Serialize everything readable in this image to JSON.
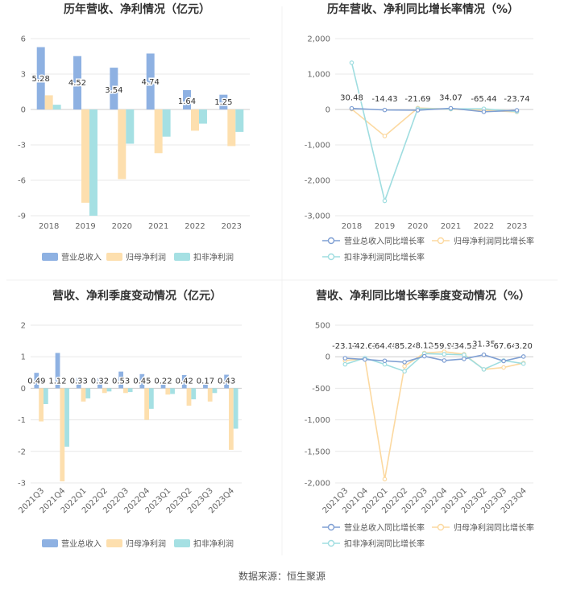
{
  "source_text": "数据来源：恒生聚源",
  "colors": {
    "revenue": "#8eb1e2",
    "net": "#fddfae",
    "deducted": "#a5e0e3",
    "line_revenue": "#7f9fd3",
    "line_net": "#fcd9a0",
    "line_deducted": "#9fdde0",
    "grid": "#e8e8e8",
    "axis": "#cccccc"
  },
  "chart_data": [
    {
      "id": "annual-amount",
      "type": "bar",
      "title": "历年营收、净利情况（亿元）",
      "categories": [
        "2018",
        "2019",
        "2020",
        "2021",
        "2022",
        "2023"
      ],
      "yticks": [
        6,
        3,
        0,
        -3,
        -6,
        -9
      ],
      "ylim": [
        -9,
        6
      ],
      "series": [
        {
          "name": "营业总收入",
          "color_key": "revenue",
          "values": [
            5.28,
            4.52,
            3.54,
            4.74,
            1.64,
            1.25
          ],
          "labels": [
            "5.28",
            "4.52",
            "3.54",
            "4.74",
            "1.64",
            "1.25"
          ]
        },
        {
          "name": "归母净利润",
          "color_key": "net",
          "values": [
            1.2,
            -7.9,
            -5.9,
            -3.7,
            -1.8,
            -3.1
          ]
        },
        {
          "name": "扣非净利润",
          "color_key": "deducted",
          "values": [
            0.4,
            -9.0,
            -2.9,
            -2.3,
            -1.2,
            -1.9
          ]
        }
      ],
      "legend": "bottom"
    },
    {
      "id": "annual-growth",
      "type": "line",
      "title": "历年营收、净利同比增长率情况（%）",
      "categories": [
        "2018",
        "2019",
        "2020",
        "2021",
        "2022",
        "2023"
      ],
      "yticks": [
        2000,
        1000,
        0,
        -1000,
        -2000,
        -3000
      ],
      "yticklabels": [
        "2,000",
        "1,000",
        "0",
        "-1,000",
        "-2,000",
        "-3,000"
      ],
      "ylim": [
        -3000,
        2000
      ],
      "series": [
        {
          "name": "营业总收入同比增长率",
          "color_key": "line_revenue",
          "values": [
            30.48,
            -14.43,
            -21.69,
            34.07,
            -65.44,
            -23.74
          ],
          "labels": [
            "30.48",
            "-14.43",
            "-21.69",
            "34.07",
            "-65.44",
            "-23.74"
          ]
        },
        {
          "name": "归母净利润同比增长率",
          "color_key": "line_net",
          "values": [
            10,
            -750,
            40,
            10,
            -20,
            -70
          ]
        },
        {
          "name": "扣非净利润同比增长率",
          "color_key": "line_deducted",
          "values": [
            1320,
            -2580,
            20,
            15,
            20,
            -60
          ]
        }
      ],
      "legend": "bottom"
    },
    {
      "id": "quarterly-amount",
      "type": "bar",
      "title": "营收、净利季度变动情况（亿元）",
      "categories": [
        "2021Q3",
        "2021Q4",
        "2022Q1",
        "2022Q2",
        "2022Q3",
        "2022Q4",
        "2023Q1",
        "2023Q2",
        "2023Q3",
        "2023Q4"
      ],
      "yticks": [
        2,
        1,
        0,
        -1,
        -2,
        -3
      ],
      "ylim": [
        -3,
        2
      ],
      "series": [
        {
          "name": "营业总收入",
          "color_key": "revenue",
          "values": [
            0.49,
            1.12,
            0.33,
            0.32,
            0.53,
            0.45,
            0.22,
            0.42,
            0.17,
            0.43
          ],
          "labels": [
            "0.49",
            "1.12",
            "0.33",
            "0.32",
            "0.53",
            "0.45",
            "0.22",
            "0.42",
            "0.17",
            "0.43"
          ]
        },
        {
          "name": "归母净利润",
          "color_key": "net",
          "values": [
            -1.05,
            -2.95,
            -0.42,
            -0.15,
            -0.15,
            -1.0,
            -0.2,
            -0.55,
            -0.42,
            -1.95
          ]
        },
        {
          "name": "扣非净利润",
          "color_key": "deducted",
          "values": [
            -0.5,
            -1.85,
            -0.32,
            -0.1,
            -0.12,
            -0.65,
            -0.18,
            -0.35,
            -0.15,
            -1.28
          ]
        }
      ],
      "legend": "bottom"
    },
    {
      "id": "quarterly-growth",
      "type": "line",
      "title": "营收、净利同比增长率季度变动情况（%）",
      "categories": [
        "2021Q3",
        "2021Q4",
        "2022Q1",
        "2022Q2",
        "2022Q3",
        "2022Q4",
        "2023Q1",
        "2023Q2",
        "2023Q3",
        "2023Q4"
      ],
      "yticks": [
        500,
        0,
        -500,
        -1000,
        -1500,
        -2000
      ],
      "yticklabels": [
        "500",
        "0",
        "-500",
        "-1,000",
        "-1,500",
        "-2,000"
      ],
      "ylim": [
        -2000,
        500
      ],
      "series": [
        {
          "name": "营业总收入同比增长率",
          "color_key": "line_revenue",
          "values": [
            -23.11,
            -42.63,
            -64.48,
            -85.24,
            8.12,
            -59.95,
            -34.52,
            31.35,
            -67.64,
            3.2
          ],
          "labels": [
            "-23.11",
            "-42.63",
            "-64.48",
            "-85.24",
            "8.12",
            "-59.95",
            "-34.52",
            "31.35",
            "-67.64",
            "3.20"
          ]
        },
        {
          "name": "归母净利润同比增长率",
          "color_key": "line_net",
          "values": [
            -60,
            -30,
            -1940,
            -150,
            60,
            80,
            40,
            -200,
            -170,
            -100
          ]
        },
        {
          "name": "扣非净利润同比增长率",
          "color_key": "line_deducted",
          "values": [
            -120,
            -20,
            -120,
            -230,
            50,
            40,
            30,
            -200,
            -60,
            -110
          ]
        }
      ],
      "legend": "bottom"
    }
  ]
}
